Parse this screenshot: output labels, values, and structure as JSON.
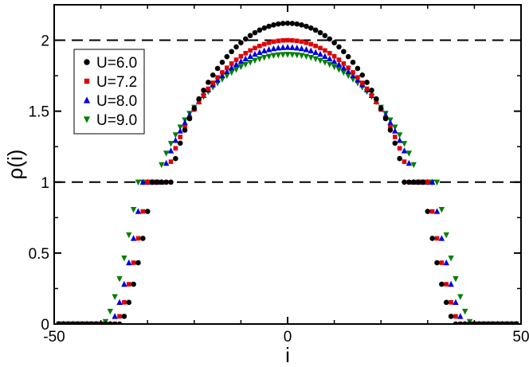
{
  "chart_data": {
    "type": "scatter",
    "xlabel": "i",
    "ylabel": "ρ(i)",
    "xlim": [
      -50,
      50
    ],
    "ylim": [
      0,
      2.25
    ],
    "xticks": [
      -50,
      0,
      50
    ],
    "yticks": [
      0,
      0.5,
      1,
      1.5,
      2
    ],
    "xtick_labels": [
      "-50",
      "0",
      "50"
    ],
    "ytick_labels": [
      "0",
      "0.5",
      "1",
      "1.5",
      "2"
    ],
    "grid": false,
    "reference_lines": [
      1,
      2
    ],
    "legend_position": "top-left",
    "x_range": [
      -49,
      49
    ],
    "series": [
      {
        "name": "U=6.0",
        "marker": "circle",
        "color": "#000000",
        "profile": {
          "peak": 2.12,
          "plateau_halfwidth": 25,
          "plateau_value": 1.0,
          "edge": 36,
          "power": 1.5
        }
      },
      {
        "name": "U=7.2",
        "marker": "square",
        "color": "#e00000",
        "profile": {
          "peak": 2.0,
          "plateau_halfwidth": 26,
          "plateau_value": 1.0,
          "edge": 37,
          "power": 1.5
        }
      },
      {
        "name": "U=8.0",
        "marker": "triangle-up",
        "color": "#0000e0",
        "profile": {
          "peak": 1.95,
          "plateau_halfwidth": 27,
          "plateau_value": 1.0,
          "edge": 38,
          "power": 1.5
        }
      },
      {
        "name": "U=9.0",
        "marker": "triangle-down",
        "color": "#008000",
        "profile": {
          "peak": 1.9,
          "plateau_halfwidth": 28,
          "plateau_value": 1.0,
          "edge": 39.5,
          "power": 1.5
        }
      }
    ]
  }
}
